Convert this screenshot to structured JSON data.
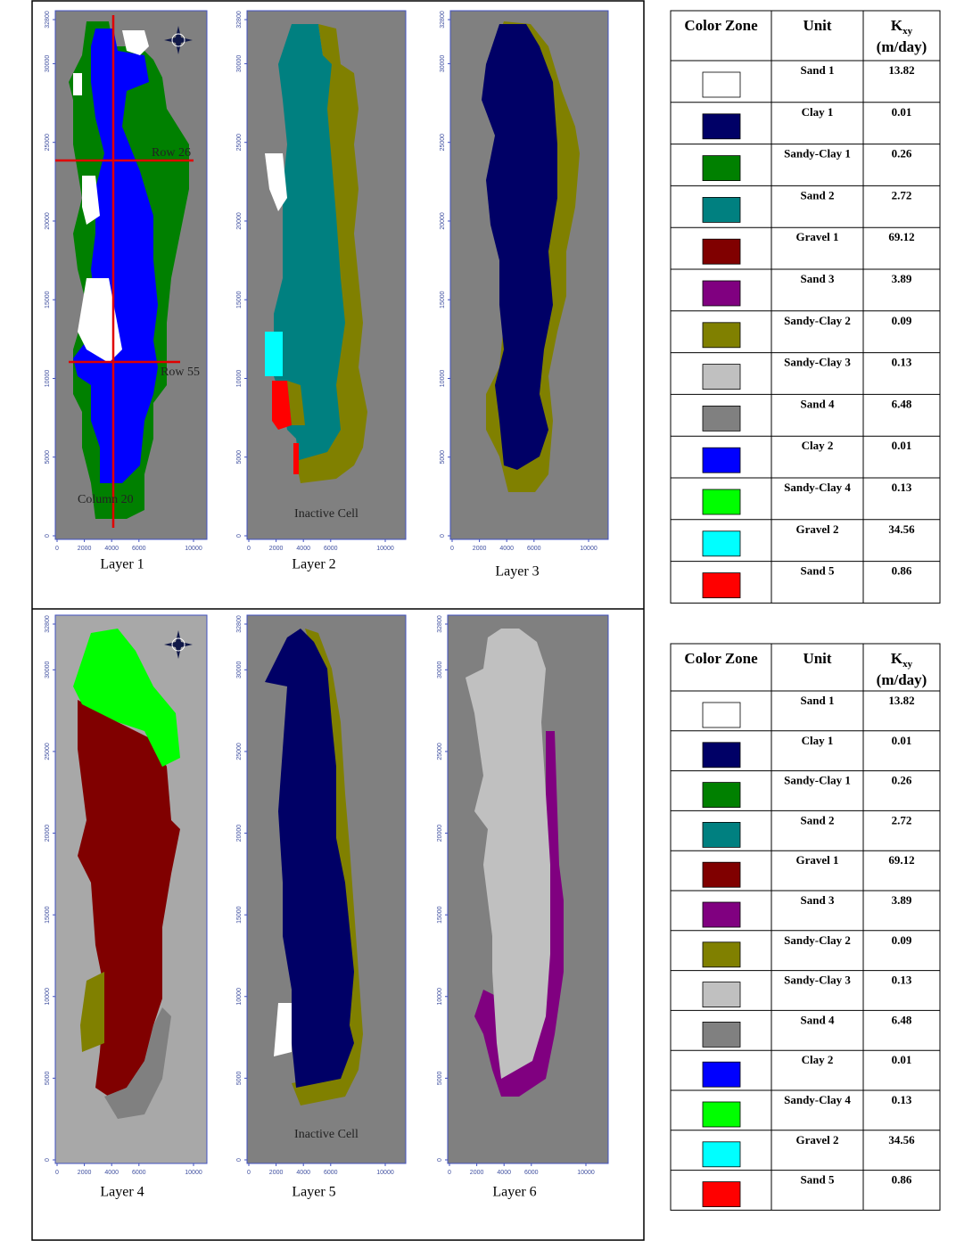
{
  "x_ticks": [
    0,
    2000,
    4000,
    6000,
    10000
  ],
  "y_ticks": [
    0,
    5000,
    10000,
    15000,
    20000,
    25000,
    30000,
    32800
  ],
  "maps": [
    {
      "label": "Layer 1",
      "annotations": [
        {
          "text": "Row 26"
        },
        {
          "text": "Row 55"
        },
        {
          "text": "Column 20"
        }
      ]
    },
    {
      "label": "Layer 2",
      "annotations": [
        {
          "text": "Inactive Cell"
        }
      ]
    },
    {
      "label": "Layer 3",
      "annotations": []
    },
    {
      "label": "Layer 4",
      "annotations": []
    },
    {
      "label": "Layer 5",
      "annotations": [
        {
          "text": "Inactive Cell"
        }
      ]
    },
    {
      "label": "Layer 6",
      "annotations": []
    }
  ],
  "tables": [
    {
      "header": {
        "color_zone": "Color Zone",
        "unit": "Unit",
        "k_symbol": "K",
        "k_subscript": "xy",
        "k_unit": "(m/day)"
      },
      "rows": [
        {
          "unit": "Sand 1",
          "k": 13.82,
          "color": "#ffffff"
        },
        {
          "unit": "Clay 1",
          "k": 0.01,
          "color": "#000066"
        },
        {
          "unit": "Sandy-Clay 1",
          "k": 0.26,
          "color": "#008000"
        },
        {
          "unit": "Sand 2",
          "k": 2.72,
          "color": "#008080"
        },
        {
          "unit": "Gravel 1",
          "k": 69.12,
          "color": "#800000"
        },
        {
          "unit": "Sand 3",
          "k": 3.89,
          "color": "#800080"
        },
        {
          "unit": "Sandy-Clay 2",
          "k": 0.09,
          "color": "#808000"
        },
        {
          "unit": "Sandy-Clay 3",
          "k": 0.13,
          "color": "#c0c0c0"
        },
        {
          "unit": "Sand 4",
          "k": 6.48,
          "color": "#808080"
        },
        {
          "unit": "Clay 2",
          "k": 0.01,
          "color": "#0000ff"
        },
        {
          "unit": "Sandy-Clay 4",
          "k": 0.13,
          "color": "#00ff00"
        },
        {
          "unit": "Gravel 2",
          "k": 34.56,
          "color": "#00ffff"
        },
        {
          "unit": "Sand 5",
          "k": 0.86,
          "color": "#ff0000"
        }
      ]
    },
    {
      "header": {
        "color_zone": "Color Zone",
        "unit": "Unit",
        "k_symbol": "K",
        "k_subscript": "xy",
        "k_unit": "(m/day)"
      },
      "rows": [
        {
          "unit": "Sand 1",
          "k": 13.82,
          "color": "#ffffff"
        },
        {
          "unit": "Clay 1",
          "k": 0.01,
          "color": "#000066"
        },
        {
          "unit": "Sandy-Clay 1",
          "k": 0.26,
          "color": "#008000"
        },
        {
          "unit": "Sand 2",
          "k": 2.72,
          "color": "#008080"
        },
        {
          "unit": "Gravel 1",
          "k": 69.12,
          "color": "#800000"
        },
        {
          "unit": "Sand 3",
          "k": 3.89,
          "color": "#800080"
        },
        {
          "unit": "Sandy-Clay 2",
          "k": 0.09,
          "color": "#808000"
        },
        {
          "unit": "Sandy-Clay 3",
          "k": 0.13,
          "color": "#c0c0c0"
        },
        {
          "unit": "Sand 4",
          "k": 6.48,
          "color": "#808080"
        },
        {
          "unit": "Clay 2",
          "k": 0.01,
          "color": "#0000ff"
        },
        {
          "unit": "Sandy-Clay 4",
          "k": 0.13,
          "color": "#00ff00"
        },
        {
          "unit": "Gravel 2",
          "k": 34.56,
          "color": "#00ffff"
        },
        {
          "unit": "Sand 5",
          "k": 0.86,
          "color": "#ff0000"
        }
      ]
    }
  ]
}
